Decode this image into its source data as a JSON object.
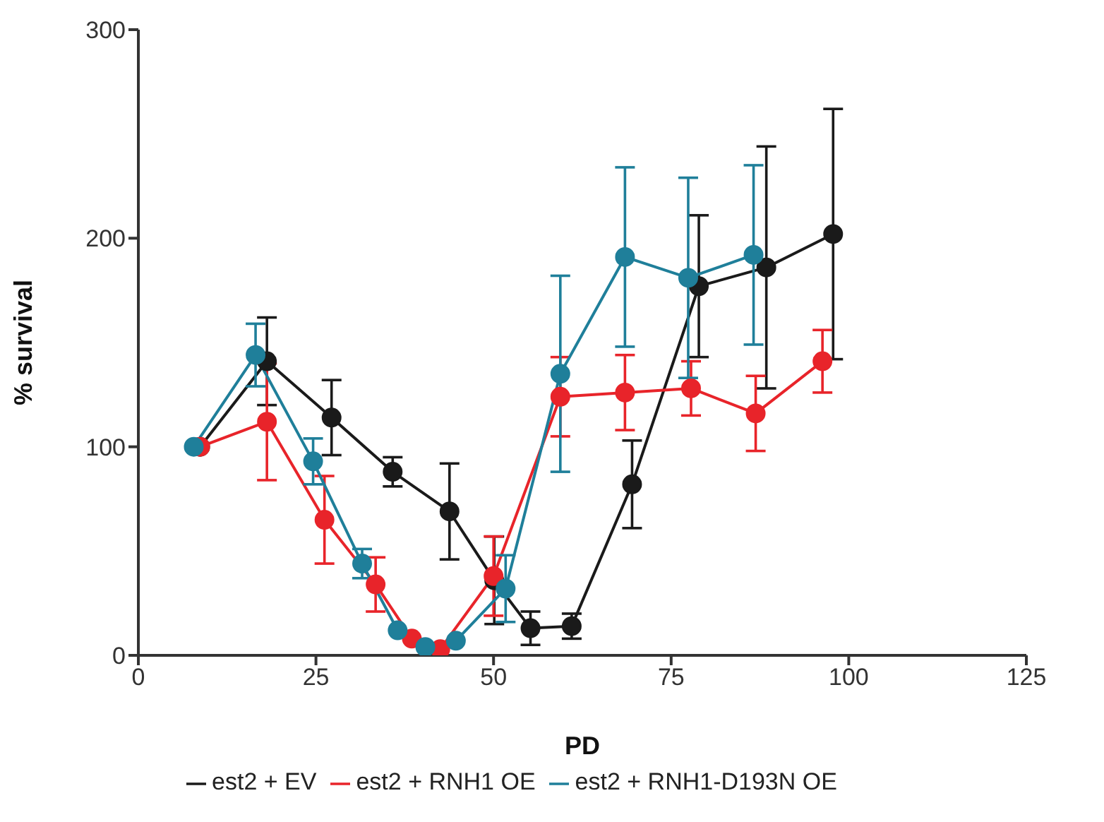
{
  "chart_data": {
    "type": "line",
    "xlabel": "PD",
    "ylabel": "% survival",
    "xlim": [
      0,
      125
    ],
    "xticks": [
      0,
      25,
      50,
      75,
      100,
      125
    ],
    "ylim": [
      0,
      300
    ],
    "yticks": [
      0,
      100,
      200,
      300
    ],
    "grid": false,
    "legend": "bottom",
    "marker": "circle",
    "line_style": "solid",
    "series": [
      {
        "name": "est2 + EV",
        "color": "#1a1a1a",
        "x": [
          8.7,
          18.1,
          27.2,
          35.8,
          43.8,
          50.1,
          55.2,
          61,
          69.5,
          78.9,
          88.4,
          97.8
        ],
        "values": [
          100,
          141,
          114,
          88,
          69,
          36,
          13,
          14,
          82,
          177,
          186,
          202
        ],
        "errors": [
          null,
          21,
          18,
          7,
          23,
          21,
          8,
          6,
          21,
          34,
          58,
          60
        ]
      },
      {
        "name": "est2 + RNH1 OE",
        "color": "#e8242a",
        "x": [
          8.7,
          18.1,
          26.2,
          33.4,
          38.5,
          42.5,
          50,
          59.4,
          68.5,
          77.8,
          86.9,
          96.3
        ],
        "values": [
          100,
          112,
          65,
          34,
          8,
          3,
          38,
          124,
          126,
          128,
          116,
          141
        ],
        "errors": [
          null,
          28,
          21,
          13,
          null,
          null,
          19,
          19,
          18,
          13,
          18,
          15
        ]
      },
      {
        "name": "est2 + RNH1-D193N OE",
        "color": "#1f7f9a",
        "x": [
          7.8,
          16.5,
          24.6,
          31.5,
          36.5,
          40.4,
          44.7,
          51.7,
          59.4,
          68.5,
          77.4,
          86.6
        ],
        "values": [
          100,
          144,
          93,
          44,
          12,
          4,
          7,
          32,
          135,
          191,
          181,
          192
        ],
        "errors": [
          null,
          15,
          11,
          7,
          null,
          null,
          null,
          16,
          47,
          43,
          48,
          43
        ]
      }
    ]
  }
}
